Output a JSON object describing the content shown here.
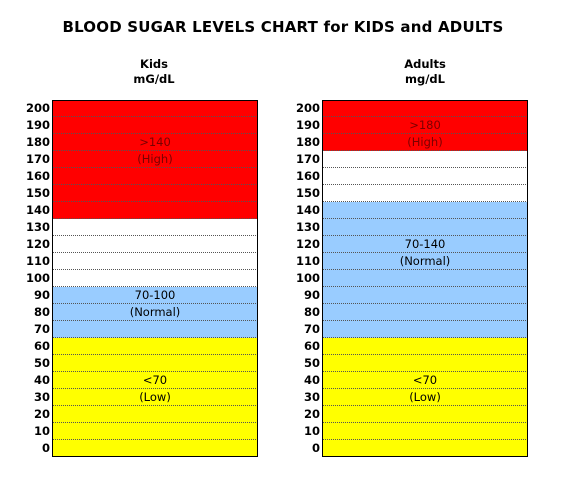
{
  "title": "BLOOD SUGAR LEVELS CHART for KIDS and ADULTS",
  "colors": {
    "high": "#ff0000",
    "normal": "#99ccff",
    "low": "#ffff00",
    "gap": "#ffffff"
  },
  "chart_data": [
    {
      "type": "table",
      "name": "Kids",
      "unit": "mG/dL",
      "ticks": [
        200,
        190,
        180,
        170,
        160,
        150,
        140,
        130,
        120,
        110,
        100,
        90,
        80,
        70,
        60,
        50,
        40,
        30,
        20,
        10,
        0
      ],
      "zones": [
        {
          "key": "high",
          "from": 140,
          "to": 200,
          "lines": [
            ">140",
            "(High)"
          ],
          "label_value": 180
        },
        {
          "key": "gap",
          "from": 100,
          "to": 130,
          "lines": []
        },
        {
          "key": "normal",
          "from": 70,
          "to": 100,
          "lines": [
            "70-100",
            "(Normal)"
          ],
          "label_value": 90
        },
        {
          "key": "low",
          "from": 0,
          "to": 60,
          "lines": [
            "<70",
            "(Low)"
          ],
          "label_value": 40
        }
      ]
    },
    {
      "type": "table",
      "name": "Adults",
      "unit": "mg/dL",
      "ticks": [
        200,
        190,
        180,
        170,
        160,
        150,
        140,
        130,
        120,
        110,
        100,
        90,
        80,
        70,
        60,
        50,
        40,
        30,
        20,
        10,
        0
      ],
      "zones": [
        {
          "key": "high",
          "from": 180,
          "to": 200,
          "lines": [
            ">180",
            "(High)"
          ],
          "label_value": 190
        },
        {
          "key": "gap",
          "from": 150,
          "to": 170,
          "lines": []
        },
        {
          "key": "normal",
          "from": 70,
          "to": 140,
          "lines": [
            "70-140",
            "(Normal)"
          ],
          "label_value": 120
        },
        {
          "key": "low",
          "from": 0,
          "to": 60,
          "lines": [
            "<70",
            "(Low)"
          ],
          "label_value": 40
        }
      ]
    }
  ]
}
